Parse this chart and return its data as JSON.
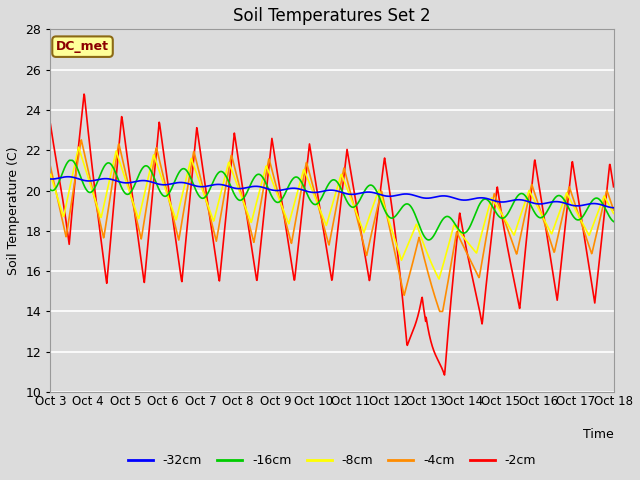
{
  "title": "Soil Temperatures Set 2",
  "xlabel": "Time",
  "ylabel": "Soil Temperature (C)",
  "ylim": [
    10,
    28
  ],
  "yticks": [
    10,
    12,
    14,
    16,
    18,
    20,
    22,
    24,
    26,
    28
  ],
  "annotation": "DC_met",
  "series_colors": {
    "-32cm": "#0000FF",
    "-16cm": "#00CC00",
    "-8cm": "#FFFF00",
    "-4cm": "#FF8C00",
    "-2cm": "#FF0000"
  },
  "background_color": "#DCDCDC",
  "axes_bg_color": "#DCDCDC",
  "grid_color": "#FFFFFF",
  "tick_labels": [
    "Oct 3",
    "Oct 4",
    "Oct 5",
    "Oct 6",
    "Oct 7",
    "Oct 8",
    "Oct 9",
    "Oct 10",
    "Oct 11",
    "Oct 12",
    "Oct 13",
    "Oct 14",
    "Oct 15",
    "Oct 16",
    "Oct 17",
    "Oct 18"
  ],
  "n_points": 1440,
  "start_day": 3,
  "end_day": 18
}
